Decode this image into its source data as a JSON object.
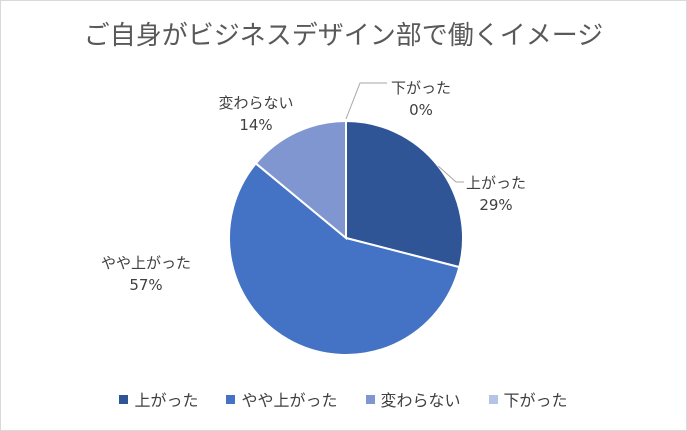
{
  "chart_data": {
    "type": "pie",
    "title": "ご自身がビジネスデザイン部で働くイメージ",
    "categories": [
      "上がった",
      "やや上がった",
      "変わらない",
      "下がった"
    ],
    "values": [
      29,
      57,
      14,
      0
    ],
    "value_labels": [
      "29%",
      "57%",
      "14%",
      "0%"
    ],
    "colors": [
      "#2f5597",
      "#4472c4",
      "#7f96d0",
      "#b4c3e6"
    ],
    "legend_position": "bottom"
  }
}
